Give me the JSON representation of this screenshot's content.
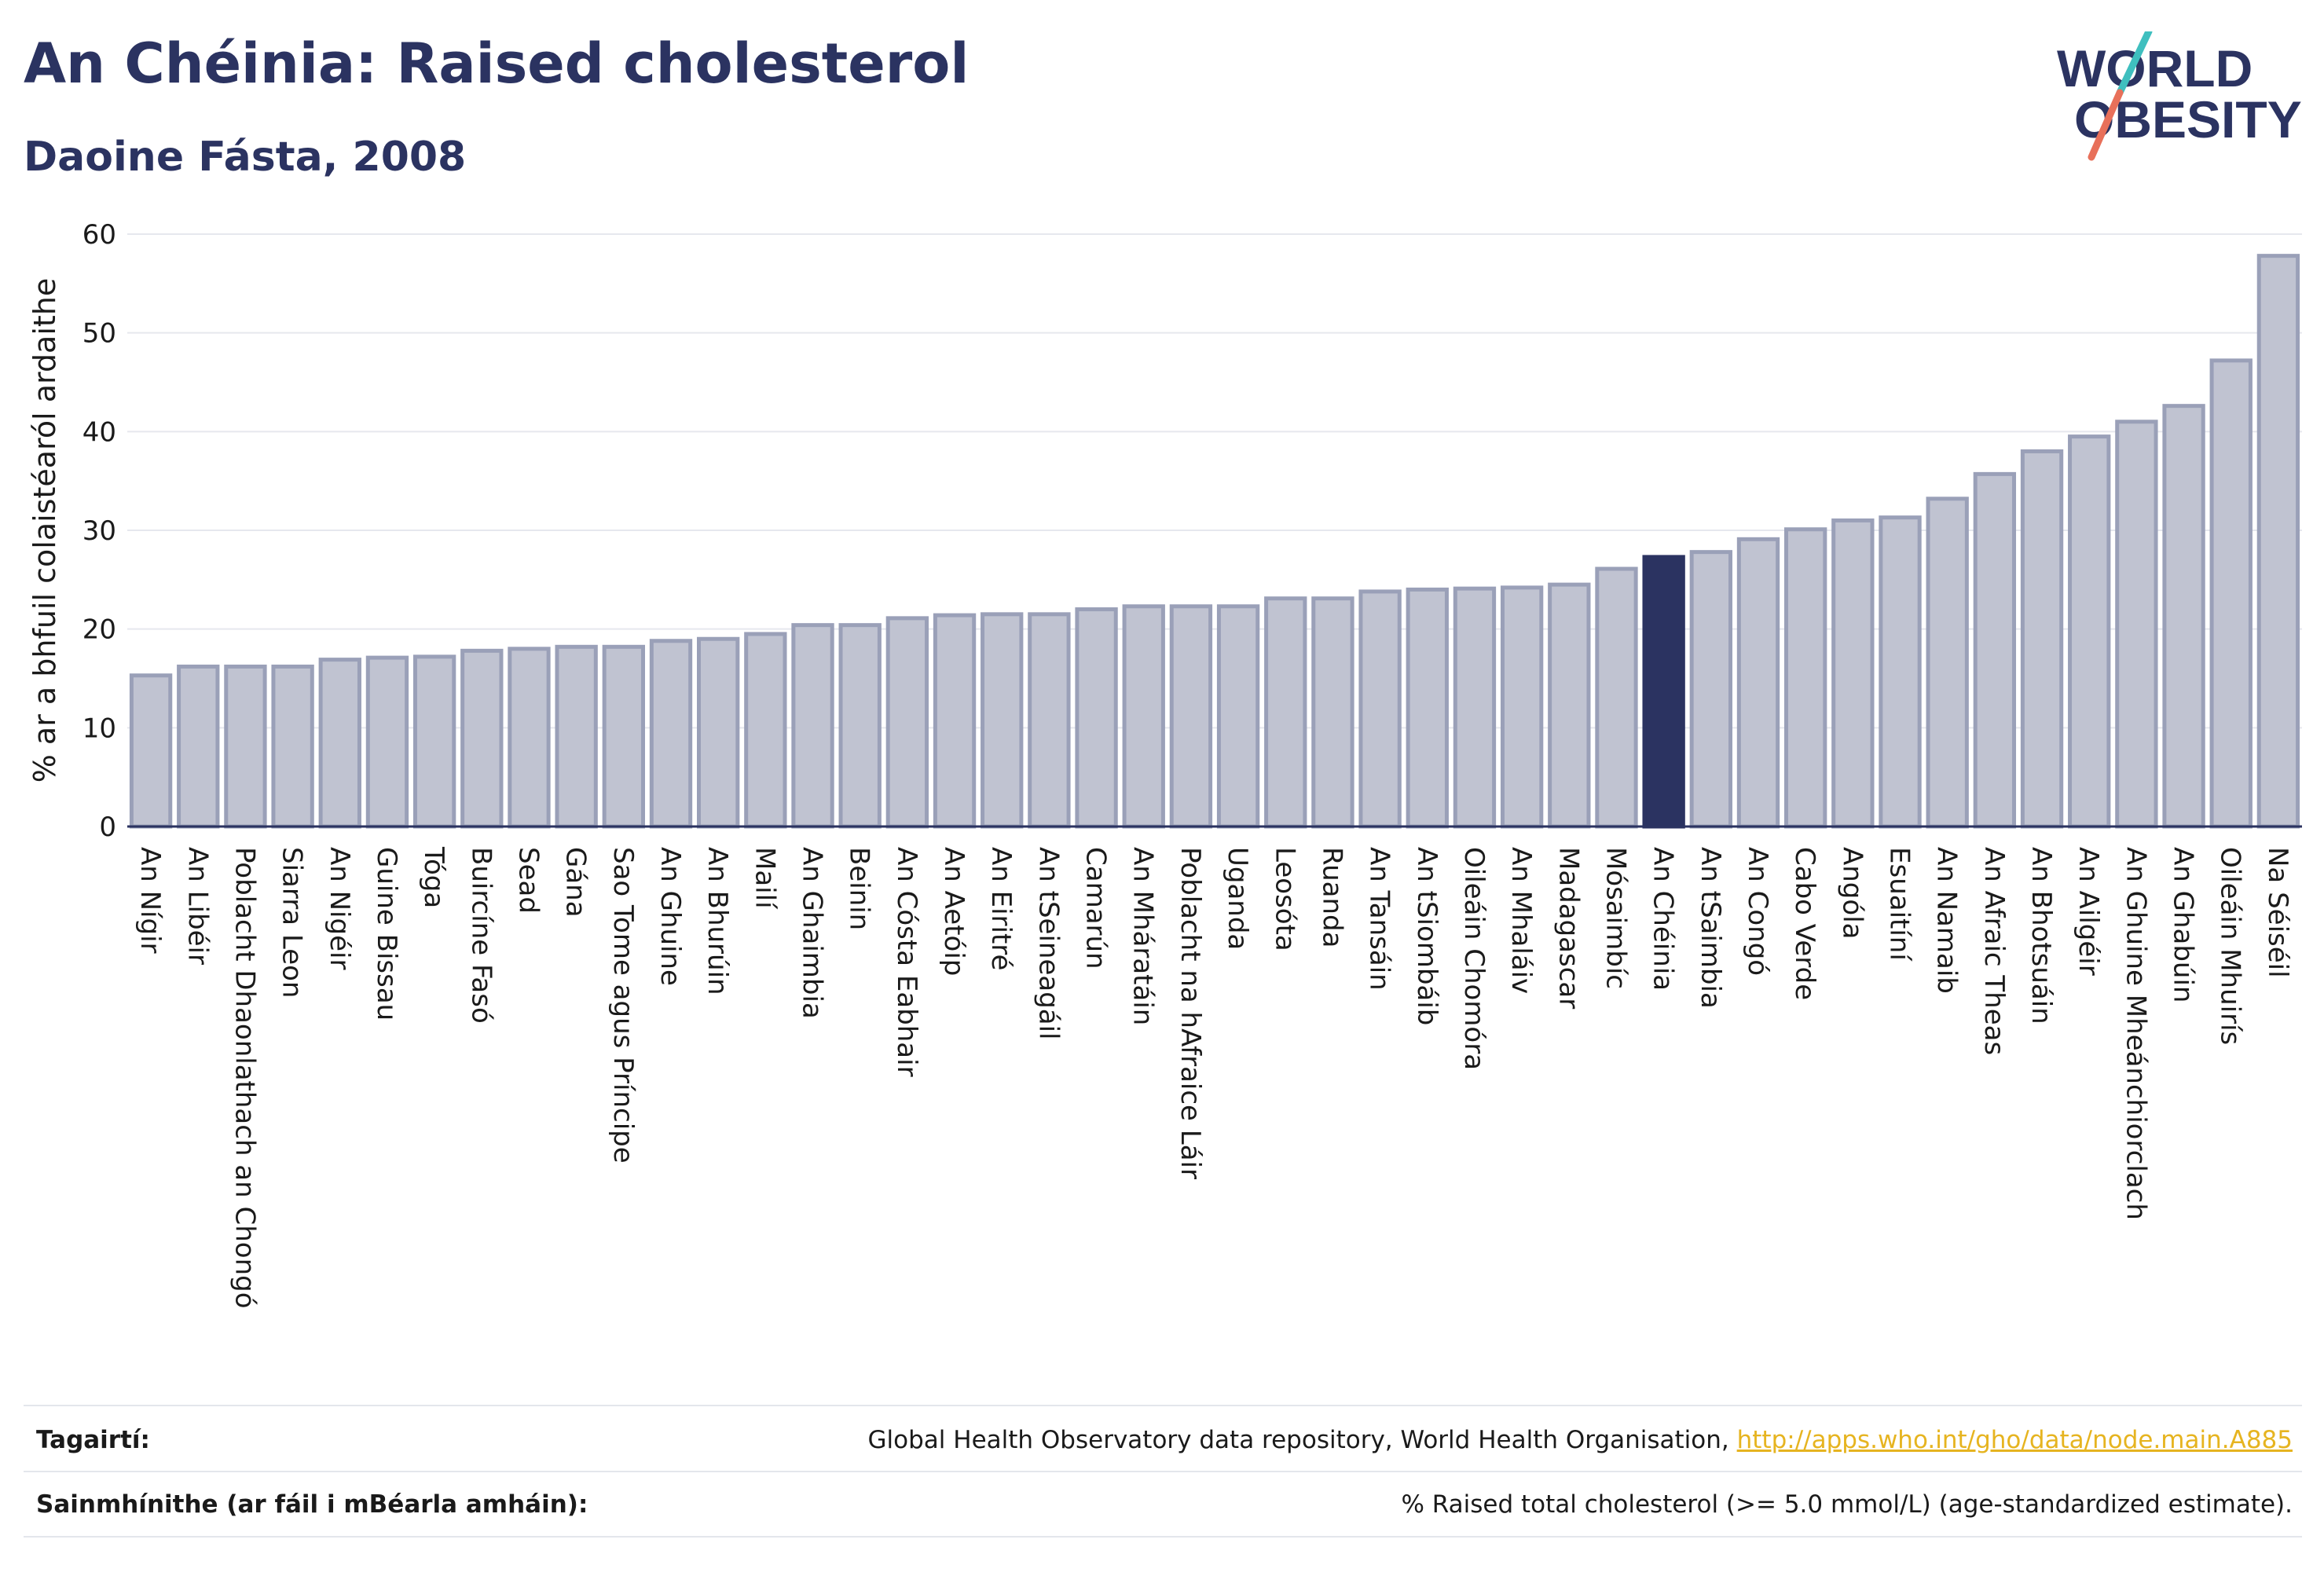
{
  "header": {
    "title": "An Chéinia: Raised cholesterol",
    "subtitle": "Daoine Fásta, 2008"
  },
  "logo": {
    "line1": "WORLD",
    "line2": "OBESITY",
    "colors": {
      "text": "#2b3361",
      "slash_top": "#3fbfbf",
      "slash_bottom": "#e8705a"
    }
  },
  "chart_data": {
    "type": "bar",
    "ylabel": "% ar a bhfuil colaistéaról ardaithe",
    "xlabel": "",
    "ylim": [
      0,
      60
    ],
    "yticks": [
      0,
      10,
      20,
      30,
      40,
      50,
      60
    ],
    "grid": true,
    "highlight": "An Chéinia",
    "colors": {
      "bar": "#c0c3d1",
      "bar_edge": "#9aa0b8",
      "highlight": "#2b3361"
    },
    "categories": [
      "An Nígir",
      "An Libéir",
      "Poblacht Dhaonlathach an Chongó",
      "Siarra Leon",
      "An Nigéir",
      "Guine Bissau",
      "Tóga",
      "Buircíne Fasó",
      "Sead",
      "Gána",
      "Sao Tome agus Príncipe",
      "An Ghuine",
      "An Bhurúin",
      "Mailí",
      "An Ghaimbia",
      "Beinin",
      "An Cósta Eabhair",
      "An Aetóip",
      "An Eiritré",
      "An tSeineagáil",
      "Camarún",
      "An Mháratáin",
      "Poblacht na hAfraice Láir",
      "Uganda",
      "Leosóta",
      "Ruanda",
      "An Tansáin",
      "An tSiombáib",
      "Oileáin Chomóra",
      "An Mhaláiv",
      "Madagascar",
      "Mósaimbíc",
      "An Chéinia",
      "An tSaimbia",
      "An Congó",
      "Cabo Verde",
      "Angóla",
      "Esuaitíní",
      "An Namaib",
      "An Afraic Theas",
      "An Bhotsuáin",
      "An Ailgéir",
      "An Ghuine Mheánchiorclach",
      "An Ghabúin",
      "Oileáin Mhuirís",
      "Na Séiséil"
    ],
    "values": [
      15.3,
      16.2,
      16.2,
      16.2,
      16.9,
      17.1,
      17.2,
      17.8,
      18.0,
      18.2,
      18.2,
      18.8,
      19.0,
      19.5,
      20.4,
      20.4,
      21.1,
      21.4,
      21.5,
      21.5,
      22.0,
      22.3,
      22.3,
      22.3,
      23.1,
      23.1,
      23.8,
      24.0,
      24.1,
      24.2,
      24.5,
      26.1,
      27.3,
      27.8,
      29.1,
      30.1,
      31.0,
      31.3,
      33.2,
      35.7,
      38.0,
      39.5,
      41.0,
      42.6,
      47.2,
      57.8
    ]
  },
  "footer": {
    "references_label": "Tagairtí:",
    "references_text": "Global Health Observatory data repository, World Health Organisation, ",
    "references_link": "http://apps.who.int/gho/data/node.main.A885",
    "definitions_label": "Sainmhínithe (ar fáil i mBéarla amháin):",
    "definitions_text": "% Raised total cholesterol (>= 5.0 mmol/L) (age-standardized estimate)."
  }
}
